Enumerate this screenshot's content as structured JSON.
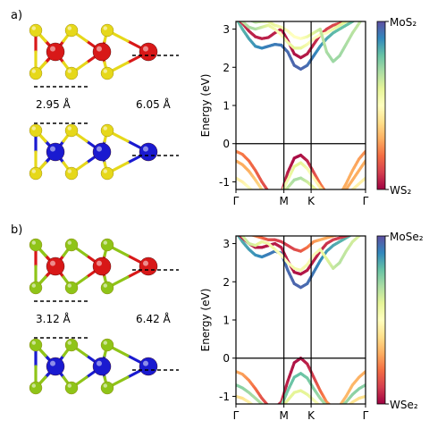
{
  "panels": [
    {
      "letter": "a)",
      "interlayer_distance": "2.95 Å",
      "layer_distance": "6.05 Å",
      "top_atoms": {
        "metal": "#d81818",
        "chalcogen": "#e6d81a"
      },
      "bottom_atoms": {
        "metal": "#1a1ad0",
        "chalcogen": "#e6d81a"
      }
    },
    {
      "letter": "b)",
      "interlayer_distance": "3.12 Å",
      "layer_distance": "6.42 Å",
      "top_atoms": {
        "metal": "#d81818",
        "chalcogen": "#8fc418"
      },
      "bottom_atoms": {
        "metal": "#1a1ad0",
        "chalcogen": "#8fc418"
      }
    }
  ],
  "chart_data": [
    {
      "type": "line",
      "ylabel": "Energy (eV)",
      "ylim": [
        -1.2,
        3.2
      ],
      "yticks": [
        -1,
        0,
        1,
        2,
        3
      ],
      "xticks": [
        "Γ",
        "M",
        "K",
        "Γ"
      ],
      "colorbar": {
        "top": "MoS₂",
        "bottom": "WS₂",
        "colormap": "Spectral"
      },
      "grid": false,
      "series": [
        {
          "x": [
            0.0,
            0.05,
            0.1,
            0.15,
            0.2,
            0.25,
            0.3,
            0.35,
            0.4,
            0.45,
            0.5,
            0.55,
            0.6,
            0.65,
            0.7,
            0.75,
            0.8,
            0.85,
            0.9,
            0.95,
            1.0
          ],
          "y": [
            -0.2,
            -0.28,
            -0.45,
            -0.7,
            -1.0,
            -1.25,
            -1.4,
            -1.3,
            -0.75,
            -0.38,
            -0.3,
            -0.45,
            -0.75,
            -1.05,
            -1.3,
            -1.45,
            -1.35,
            -1.05,
            -0.7,
            -0.4,
            -0.2
          ],
          "mix": [
            0.25,
            0.22,
            0.2,
            0.18,
            0.15,
            0.12,
            0.1,
            0.08,
            0.05,
            0.02,
            0.02,
            0.05,
            0.12,
            0.2,
            0.25,
            0.3,
            0.3,
            0.3,
            0.3,
            0.28,
            0.25
          ]
        },
        {
          "x": [
            0.0,
            0.05,
            0.1,
            0.15,
            0.2,
            0.25,
            0.3,
            0.35,
            0.4,
            0.45,
            0.5,
            0.55,
            0.6,
            0.65,
            0.7,
            0.75,
            0.8,
            0.85,
            0.9,
            0.95,
            1.0
          ],
          "y": [
            -0.45,
            -0.55,
            -0.72,
            -0.95,
            -1.2,
            -1.35,
            -1.4,
            -1.3,
            -0.95,
            -0.6,
            -0.5,
            -0.65,
            -0.9,
            -1.15,
            -1.35,
            -1.45,
            -1.4,
            -1.2,
            -0.95,
            -0.7,
            -0.45
          ],
          "mix": [
            0.3,
            0.3,
            0.3,
            0.35,
            0.4,
            0.45,
            0.5,
            0.5,
            0.55,
            0.6,
            0.6,
            0.55,
            0.5,
            0.45,
            0.4,
            0.35,
            0.3,
            0.3,
            0.3,
            0.3,
            0.3
          ]
        },
        {
          "x": [
            0.0,
            0.05,
            0.1,
            0.15,
            0.2,
            0.25,
            0.3,
            0.35,
            0.4,
            0.45,
            0.5,
            0.55,
            0.6,
            0.65,
            0.7,
            0.75,
            0.8,
            0.85,
            0.9,
            0.95,
            1.0
          ],
          "y": [
            -0.9,
            -1.0,
            -1.15,
            -1.3,
            -1.4,
            -1.42,
            -1.4,
            -1.35,
            -1.15,
            -0.95,
            -0.9,
            -1.0,
            -1.15,
            -1.3,
            -1.4,
            -1.45,
            -1.42,
            -1.35,
            -1.2,
            -1.05,
            -0.9
          ],
          "mix": [
            0.45,
            0.45,
            0.5,
            0.5,
            0.55,
            0.55,
            0.6,
            0.6,
            0.65,
            0.7,
            0.7,
            0.65,
            0.6,
            0.55,
            0.5,
            0.5,
            0.45,
            0.45,
            0.45,
            0.45,
            0.45
          ]
        },
        {
          "x": [
            0.0,
            0.05,
            0.1,
            0.15,
            0.2,
            0.25,
            0.3,
            0.35,
            0.4,
            0.45,
            0.5,
            0.55,
            0.6,
            0.65,
            0.7,
            0.75,
            0.8,
            0.85,
            0.9,
            0.95,
            1.0
          ],
          "y": [
            3.3,
            3.0,
            2.75,
            2.55,
            2.5,
            2.55,
            2.6,
            2.58,
            2.4,
            2.05,
            1.95,
            2.05,
            2.3,
            2.55,
            2.75,
            2.9,
            3.0,
            3.1,
            3.2,
            3.3,
            3.4
          ],
          "mix": [
            0.8,
            0.82,
            0.85,
            0.88,
            0.9,
            0.92,
            0.92,
            0.93,
            0.95,
            0.96,
            0.96,
            0.95,
            0.92,
            0.88,
            0.85,
            0.82,
            0.8,
            0.8,
            0.8,
            0.8,
            0.8
          ]
        },
        {
          "x": [
            0.0,
            0.05,
            0.1,
            0.15,
            0.2,
            0.25,
            0.3,
            0.35,
            0.4,
            0.45,
            0.5,
            0.55,
            0.6,
            0.65,
            0.7,
            0.75,
            0.8,
            0.85,
            0.9,
            0.95,
            1.0
          ],
          "y": [
            3.3,
            3.15,
            2.95,
            2.8,
            2.75,
            2.78,
            2.9,
            3.0,
            2.7,
            2.35,
            2.25,
            2.35,
            2.6,
            2.85,
            3.0,
            3.1,
            3.15,
            3.2,
            3.25,
            3.3,
            3.35
          ],
          "mix": [
            0.1,
            0.08,
            0.06,
            0.05,
            0.05,
            0.05,
            0.05,
            0.05,
            0.04,
            0.03,
            0.03,
            0.04,
            0.06,
            0.08,
            0.1,
            0.12,
            0.12,
            0.12,
            0.12,
            0.12,
            0.1
          ]
        },
        {
          "x": [
            0.0,
            0.05,
            0.1,
            0.15,
            0.2,
            0.25,
            0.3,
            0.35,
            0.4,
            0.45,
            0.5,
            0.55,
            0.6,
            0.65,
            0.7,
            0.75,
            0.8,
            0.85,
            0.9,
            0.95,
            1.0
          ],
          "y": [
            3.35,
            3.2,
            3.05,
            3.0,
            3.05,
            3.1,
            3.0,
            2.85,
            2.65,
            2.5,
            2.5,
            2.6,
            2.75,
            2.85,
            2.9,
            3.0,
            3.1,
            3.2,
            3.25,
            3.3,
            3.35
          ],
          "mix": [
            0.6,
            0.65,
            0.7,
            0.7,
            0.65,
            0.6,
            0.55,
            0.5,
            0.55,
            0.6,
            0.6,
            0.55,
            0.5,
            0.5,
            0.5,
            0.55,
            0.6,
            0.6,
            0.6,
            0.6,
            0.6
          ]
        },
        {
          "x": [
            0.0,
            0.05,
            0.1,
            0.15,
            0.2,
            0.25,
            0.3,
            0.35,
            0.4,
            0.45,
            0.5,
            0.55,
            0.6,
            0.65,
            0.7,
            0.75,
            0.8,
            0.85,
            0.9,
            0.95,
            1.0
          ],
          "y": [
            3.4,
            3.35,
            3.25,
            3.18,
            3.2,
            3.2,
            3.1,
            3.05,
            2.95,
            2.8,
            2.75,
            2.8,
            2.9,
            3.0,
            2.4,
            2.15,
            2.3,
            2.6,
            2.9,
            3.15,
            3.4
          ],
          "mix": [
            0.7,
            0.72,
            0.7,
            0.68,
            0.65,
            0.6,
            0.58,
            0.55,
            0.52,
            0.5,
            0.5,
            0.55,
            0.6,
            0.65,
            0.7,
            0.72,
            0.72,
            0.7,
            0.68,
            0.66,
            0.65
          ]
        }
      ]
    },
    {
      "type": "line",
      "ylabel": "Energy (eV)",
      "ylim": [
        -1.2,
        3.2
      ],
      "yticks": [
        -1,
        0,
        1,
        2,
        3
      ],
      "xticks": [
        "Γ",
        "M",
        "K",
        "Γ"
      ],
      "colorbar": {
        "top": "MoSe₂",
        "bottom": "WSe₂",
        "colormap": "Spectral"
      },
      "grid": false,
      "series": [
        {
          "x": [
            0.0,
            0.05,
            0.1,
            0.15,
            0.2,
            0.25,
            0.3,
            0.35,
            0.4,
            0.45,
            0.5,
            0.55,
            0.6,
            0.65,
            0.7,
            0.75,
            0.8,
            0.85,
            0.9,
            0.95,
            1.0
          ],
          "y": [
            -0.35,
            -0.42,
            -0.58,
            -0.8,
            -1.05,
            -1.25,
            -1.3,
            -1.15,
            -0.6,
            -0.12,
            0.0,
            -0.15,
            -0.5,
            -0.85,
            -1.15,
            -1.3,
            -1.25,
            -1.0,
            -0.7,
            -0.5,
            -0.35
          ],
          "mix": [
            0.3,
            0.28,
            0.25,
            0.2,
            0.15,
            0.12,
            0.1,
            0.08,
            0.05,
            0.03,
            0.03,
            0.05,
            0.1,
            0.18,
            0.25,
            0.3,
            0.32,
            0.32,
            0.32,
            0.31,
            0.3
          ]
        },
        {
          "x": [
            0.0,
            0.05,
            0.1,
            0.15,
            0.2,
            0.25,
            0.3,
            0.35,
            0.4,
            0.45,
            0.5,
            0.55,
            0.6,
            0.65,
            0.7,
            0.75,
            0.8,
            0.85,
            0.9,
            0.95,
            1.0
          ],
          "y": [
            -0.7,
            -0.78,
            -0.9,
            -1.05,
            -1.2,
            -1.32,
            -1.35,
            -1.25,
            -0.85,
            -0.5,
            -0.4,
            -0.52,
            -0.8,
            -1.05,
            -1.25,
            -1.35,
            -1.3,
            -1.15,
            -0.95,
            -0.8,
            -0.7
          ],
          "mix": [
            0.75,
            0.75,
            0.72,
            0.7,
            0.7,
            0.7,
            0.72,
            0.75,
            0.78,
            0.8,
            0.8,
            0.78,
            0.75,
            0.72,
            0.7,
            0.7,
            0.7,
            0.72,
            0.74,
            0.75,
            0.75
          ]
        },
        {
          "x": [
            0.0,
            0.05,
            0.1,
            0.15,
            0.2,
            0.25,
            0.3,
            0.35,
            0.4,
            0.45,
            0.5,
            0.55,
            0.6,
            0.65,
            0.7,
            0.75,
            0.8,
            0.85,
            0.9,
            0.95,
            1.0
          ],
          "y": [
            -1.0,
            -1.05,
            -1.15,
            -1.28,
            -1.38,
            -1.42,
            -1.4,
            -1.3,
            -1.1,
            -0.9,
            -0.85,
            -0.95,
            -1.1,
            -1.25,
            -1.35,
            -1.4,
            -1.38,
            -1.3,
            -1.15,
            -1.05,
            -1.0
          ],
          "mix": [
            0.4,
            0.4,
            0.45,
            0.5,
            0.55,
            0.55,
            0.55,
            0.55,
            0.6,
            0.6,
            0.6,
            0.6,
            0.55,
            0.5,
            0.5,
            0.45,
            0.45,
            0.45,
            0.42,
            0.4,
            0.4
          ]
        },
        {
          "x": [
            0.0,
            0.05,
            0.1,
            0.15,
            0.2,
            0.25,
            0.3,
            0.35,
            0.4,
            0.45,
            0.5,
            0.55,
            0.6,
            0.65,
            0.7,
            0.75,
            0.8,
            0.85,
            0.9,
            0.95,
            1.0
          ],
          "y": [
            3.3,
            3.05,
            2.85,
            2.7,
            2.65,
            2.72,
            2.8,
            2.75,
            2.3,
            1.95,
            1.85,
            1.95,
            2.25,
            2.55,
            2.8,
            2.95,
            3.05,
            3.15,
            3.25,
            3.3,
            3.4
          ],
          "mix": [
            0.82,
            0.84,
            0.86,
            0.88,
            0.9,
            0.92,
            0.93,
            0.94,
            0.95,
            0.96,
            0.96,
            0.95,
            0.93,
            0.9,
            0.87,
            0.85,
            0.83,
            0.82,
            0.82,
            0.82,
            0.82
          ]
        },
        {
          "x": [
            0.0,
            0.05,
            0.1,
            0.15,
            0.2,
            0.25,
            0.3,
            0.35,
            0.4,
            0.45,
            0.5,
            0.55,
            0.6,
            0.65,
            0.7,
            0.75,
            0.8,
            0.85,
            0.9,
            0.95,
            1.0
          ],
          "y": [
            3.3,
            3.15,
            3.0,
            2.9,
            2.9,
            2.95,
            3.0,
            2.9,
            2.55,
            2.25,
            2.2,
            2.3,
            2.55,
            2.8,
            3.0,
            3.1,
            3.15,
            3.2,
            3.25,
            3.3,
            3.35
          ],
          "mix": [
            0.08,
            0.06,
            0.05,
            0.04,
            0.04,
            0.04,
            0.04,
            0.05,
            0.05,
            0.03,
            0.03,
            0.04,
            0.05,
            0.06,
            0.08,
            0.1,
            0.1,
            0.1,
            0.1,
            0.09,
            0.08
          ]
        },
        {
          "x": [
            0.0,
            0.05,
            0.1,
            0.15,
            0.2,
            0.25,
            0.3,
            0.35,
            0.4,
            0.45,
            0.5,
            0.55,
            0.6,
            0.65,
            0.7,
            0.75,
            0.8,
            0.85,
            0.9,
            0.95,
            1.0
          ],
          "y": [
            3.35,
            3.2,
            3.0,
            2.95,
            3.05,
            3.0,
            2.85,
            2.7,
            2.5,
            2.35,
            2.3,
            2.45,
            2.7,
            2.85,
            2.6,
            2.35,
            2.5,
            2.8,
            3.05,
            3.2,
            3.35
          ],
          "mix": [
            0.6,
            0.62,
            0.65,
            0.62,
            0.58,
            0.55,
            0.55,
            0.5,
            0.5,
            0.55,
            0.55,
            0.55,
            0.5,
            0.55,
            0.6,
            0.65,
            0.68,
            0.66,
            0.64,
            0.62,
            0.6
          ]
        },
        {
          "x": [
            0.0,
            0.05,
            0.1,
            0.15,
            0.2,
            0.25,
            0.3,
            0.35,
            0.4,
            0.45,
            0.5,
            0.55,
            0.6,
            0.65,
            0.7,
            0.75,
            0.8,
            0.85,
            0.9,
            0.95,
            1.0
          ],
          "y": [
            3.4,
            3.35,
            3.25,
            3.2,
            3.15,
            3.1,
            3.1,
            3.05,
            2.95,
            2.85,
            2.8,
            2.9,
            3.05,
            3.1,
            3.15,
            3.2,
            3.25,
            3.3,
            3.35,
            3.4,
            3.45
          ],
          "mix": [
            0.35,
            0.33,
            0.3,
            0.25,
            0.2,
            0.15,
            0.12,
            0.1,
            0.1,
            0.12,
            0.15,
            0.2,
            0.25,
            0.3,
            0.3,
            0.28,
            0.26,
            0.25,
            0.25,
            0.3,
            0.35
          ]
        }
      ]
    }
  ]
}
